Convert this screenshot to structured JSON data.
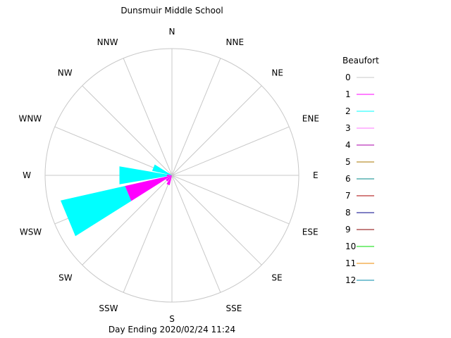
{
  "chart_data": {
    "type": "windrose",
    "title": "Dunsmuir Middle School",
    "footer": "Day Ending 2020/02/24 11:24",
    "directions": [
      "N",
      "NNE",
      "NE",
      "ENE",
      "E",
      "ESE",
      "SE",
      "SSE",
      "S",
      "SSW",
      "SW",
      "WSW",
      "W",
      "WNW",
      "NW",
      "NNW"
    ],
    "max_radius_value": 1.0,
    "legend": {
      "title": "Beaufort",
      "entries": [
        {
          "label": "0",
          "color": "#c8c8c8"
        },
        {
          "label": "1",
          "color": "#ff00ff"
        },
        {
          "label": "2",
          "color": "#00ffff"
        },
        {
          "label": "3",
          "color": "#ff77ff"
        },
        {
          "label": "4",
          "color": "#aa00aa"
        },
        {
          "label": "5",
          "color": "#aa7700"
        },
        {
          "label": "6",
          "color": "#008888"
        },
        {
          "label": "7",
          "color": "#aa0000"
        },
        {
          "label": "8",
          "color": "#000088"
        },
        {
          "label": "9",
          "color": "#880000"
        },
        {
          "label": "10",
          "color": "#00dd00"
        },
        {
          "label": "11",
          "color": "#ee8800"
        },
        {
          "label": "12",
          "color": "#0088aa"
        }
      ]
    },
    "wedges": [
      {
        "direction": "SSW",
        "beaufort": "1",
        "inner": 0.0,
        "outer": 0.08
      },
      {
        "direction": "SW",
        "beaufort": "1",
        "inner": 0.0,
        "outer": 0.06
      },
      {
        "direction": "WSW",
        "beaufort": "1",
        "inner": 0.0,
        "outer": 0.38
      },
      {
        "direction": "WSW",
        "beaufort": "2",
        "inner": 0.38,
        "outer": 0.9
      },
      {
        "direction": "W",
        "beaufort": "1",
        "inner": 0.0,
        "outer": 0.04
      },
      {
        "direction": "W",
        "beaufort": "2",
        "inner": 0.04,
        "outer": 0.42
      },
      {
        "direction": "WNW",
        "beaufort": "2",
        "inner": 0.0,
        "outer": 0.16
      }
    ]
  }
}
